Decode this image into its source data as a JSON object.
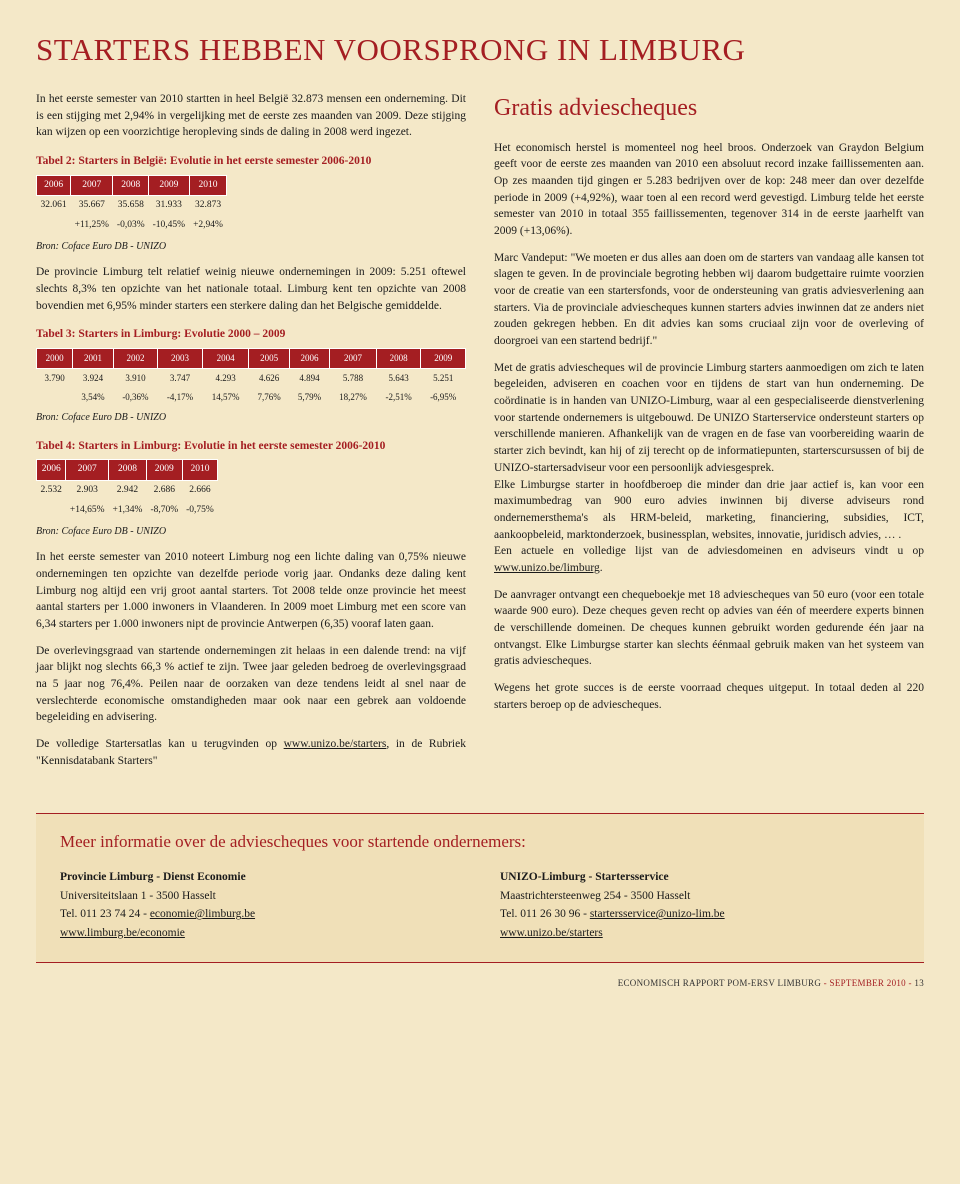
{
  "title": "STARTERS HEBBEN VOORSPRONG IN LIMBURG",
  "left": {
    "p1": "In het eerste semester van 2010 startten in heel België 32.873 mensen een onderneming. Dit is een stijging met 2,94% in vergelijking met de eerste zes maanden van 2009. Deze stijging kan wijzen op een voorzichtige heropleving sinds de daling in 2008 werd ingezet.",
    "t2": {
      "caption": "Tabel 2: Starters in België: Evolutie in het eerste semester 2006-2010",
      "headers": [
        "2006",
        "2007",
        "2008",
        "2009",
        "2010"
      ],
      "row1": [
        "32.061",
        "35.667",
        "35.658",
        "31.933",
        "32.873"
      ],
      "row2": [
        "",
        "+11,25%",
        "-0,03%",
        "-10,45%",
        "+2,94%"
      ],
      "source": "Bron: Coface Euro DB - UNIZO"
    },
    "p2": "De provincie Limburg telt relatief weinig nieuwe ondernemingen in 2009: 5.251 oftewel slechts 8,3% ten opzichte van het nationale totaal. Limburg kent ten opzichte van 2008 bovendien met 6,95% minder starters een sterkere daling dan het Belgische gemiddelde.",
    "t3": {
      "caption": "Tabel 3: Starters in Limburg: Evolutie 2000 – 2009",
      "headers": [
        "2000",
        "2001",
        "2002",
        "2003",
        "2004",
        "2005",
        "2006",
        "2007",
        "2008",
        "2009"
      ],
      "row1": [
        "3.790",
        "3.924",
        "3.910",
        "3.747",
        "4.293",
        "4.626",
        "4.894",
        "5.788",
        "5.643",
        "5.251"
      ],
      "row2": [
        "",
        "3,54%",
        "-0,36%",
        "-4,17%",
        "14,57%",
        "7,76%",
        "5,79%",
        "18,27%",
        "-2,51%",
        "-6,95%"
      ],
      "source": "Bron: Coface Euro DB - UNIZO"
    },
    "t4": {
      "caption": "Tabel 4: Starters in Limburg: Evolutie in het eerste semester 2006-2010",
      "headers": [
        "2006",
        "2007",
        "2008",
        "2009",
        "2010"
      ],
      "row1": [
        "2.532",
        "2.903",
        "2.942",
        "2.686",
        "2.666"
      ],
      "row2": [
        "",
        "+14,65%",
        "+1,34%",
        "-8,70%",
        "-0,75%"
      ],
      "source": "Bron: Coface Euro DB - UNIZO"
    },
    "p3": "In het eerste semester van 2010 noteert Limburg nog een lichte daling van 0,75% nieuwe ondernemingen ten opzichte van dezelfde periode vorig jaar. Ondanks deze daling kent Limburg nog altijd een vrij groot aantal starters. Tot 2008 telde onze provincie het meest aantal starters per 1.000 inwoners in Vlaanderen. In 2009 moet Limburg met een score van 6,34 starters per 1.000 inwoners nipt de provincie Antwerpen (6,35) vooraf laten gaan.",
    "p4": "De overlevingsgraad van startende ondernemingen zit helaas in een dalende trend: na vijf jaar blijkt nog slechts 66,3 % actief te zijn. Twee jaar geleden bedroeg de overlevingsgraad na 5 jaar nog 76,4%. Peilen naar de oorzaken van deze tendens leidt al snel naar de verslechterde economische omstandigheden maar ook naar een gebrek aan voldoende begeleiding en advisering.",
    "p5a": "De volledige Startersatlas kan u terugvinden op ",
    "p5link": "www.unizo.be/starters",
    "p5b": ", in de Rubriek \"Kennisdatabank Starters\""
  },
  "right": {
    "title": "Gratis adviescheques",
    "p1": "Het economisch herstel is momenteel nog heel broos. Onderzoek van Graydon Belgium geeft voor de eerste zes maanden van 2010 een absoluut record inzake faillissementen aan. Op zes maanden tijd gingen er 5.283 bedrijven over de kop: 248 meer dan over dezelfde periode in 2009 (+4,92%), waar toen al een record werd gevestigd. Limburg telde het eerste semester van 2010 in totaal 355 faillissementen, tegenover 314 in de eerste jaarhelft van 2009 (+13,06%).",
    "p2": "Marc Vandeput: \"We moeten er dus alles aan doen om de starters van vandaag alle kansen tot slagen te geven. In de provinciale begroting hebben wij daarom budgettaire ruimte voorzien voor de creatie van een startersfonds, voor de ondersteuning van gratis adviesverlening aan starters. Via de provinciale adviescheques kunnen starters advies inwinnen dat ze anders niet zouden gekregen hebben. En dit advies kan soms cruciaal zijn voor de overleving of doorgroei van een startend bedrijf.\"",
    "p3a": "Met de gratis adviescheques wil de provincie Limburg starters aanmoedigen om zich te laten begeleiden, adviseren en coachen voor en tijdens de start van hun onderneming. De coördinatie is in handen van UNIZO-Limburg, waar al een gespecialiseerde dienstverlening voor startende ondernemers is uitgebouwd. De UNIZO Starterservice ondersteunt starters op verschillende manieren. Afhankelijk van de vragen en de fase van voorbereiding waarin de starter zich bevindt, kan hij of zij terecht op de informatiepunten, starterscursussen of bij de UNIZO-startersadviseur voor een persoonlijk adviesgesprek.",
    "p3b": "Elke Limburgse starter in hoofdberoep die minder dan drie jaar actief is, kan voor een maximumbedrag van 900 euro advies inwinnen bij diverse adviseurs rond ondernemersthema's als HRM-beleid, marketing, financiering, subsidies, ICT, aankoopbeleid, marktonderzoek, businessplan, websites, innovatie, juridisch advies, … .",
    "p3c": "Een actuele en volledige lijst van de adviesdomeinen en adviseurs vindt u op ",
    "p3link": "www.unizo.be/limburg",
    "p4": "De aanvrager ontvangt een chequeboekje met 18 adviescheques van 50 euro (voor een totale waarde 900 euro). Deze cheques geven recht op advies van één of meerdere experts binnen de verschillende domeinen. De cheques kunnen gebruikt worden gedurende één jaar na ontvangst. Elke Limburgse starter kan slechts éénmaal gebruik maken van het systeem van gratis adviescheques.",
    "p5": "Wegens het grote succes is de eerste voorraad cheques uitgeput. In totaal deden al 220 starters beroep op de adviescheques."
  },
  "infobox": {
    "title": "Meer informatie over de adviescheques voor startende ondernemers:",
    "left": {
      "l1": "Provincie Limburg - Dienst Economie",
      "l2": "Universiteitslaan 1 - 3500 Hasselt",
      "l3a": "Tel. 011 23 74 24 - ",
      "l3b": "economie@limburg.be",
      "l4": "www.limburg.be/economie"
    },
    "right": {
      "l1": "UNIZO-Limburg - Startersservice",
      "l2": "Maastrichtersteenweg 254 - 3500 Hasselt",
      "l3a": "Tel. 011 26 30 96 - ",
      "l3b": "startersservice@unizo-lim.be",
      "l4": "www.unizo.be/starters"
    }
  },
  "footer": {
    "a": "ECONOMISCH RAPPORT POM-ERSV LIMBURG ",
    "b": "- SEPTEMBER 2010 - ",
    "c": "13"
  }
}
